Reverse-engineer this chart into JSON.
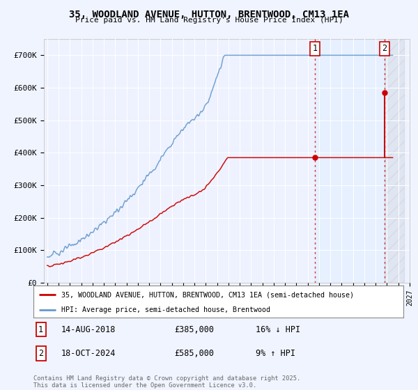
{
  "title": "35, WOODLAND AVENUE, HUTTON, BRENTWOOD, CM13 1EA",
  "subtitle": "Price paid vs. HM Land Registry's House Price Index (HPI)",
  "ylim": [
    0,
    750000
  ],
  "yticks": [
    0,
    100000,
    200000,
    300000,
    400000,
    500000,
    600000,
    700000
  ],
  "ytick_labels": [
    "£0",
    "£100K",
    "£200K",
    "£300K",
    "£400K",
    "£500K",
    "£600K",
    "£700K"
  ],
  "x_start_year": 1995,
  "x_end_year": 2027,
  "marker1_date": 2018.62,
  "marker1_price": 385000,
  "marker1_text": "14-AUG-2018",
  "marker1_hpi_text": "16% ↓ HPI",
  "marker2_date": 2024.79,
  "marker2_price": 585000,
  "marker2_text": "18-OCT-2024",
  "marker2_hpi_text": "9% ↑ HPI",
  "red_color": "#cc0000",
  "blue_color": "#6699cc",
  "shade_color": "#ddeeff",
  "legend1": "35, WOODLAND AVENUE, HUTTON, BRENTWOOD, CM13 1EA (semi-detached house)",
  "legend2": "HPI: Average price, semi-detached house, Brentwood",
  "footnote": "Contains HM Land Registry data © Crown copyright and database right 2025.\nThis data is licensed under the Open Government Licence v3.0.",
  "background_color": "#f0f4ff",
  "plot_bg_color": "#eef2ff"
}
